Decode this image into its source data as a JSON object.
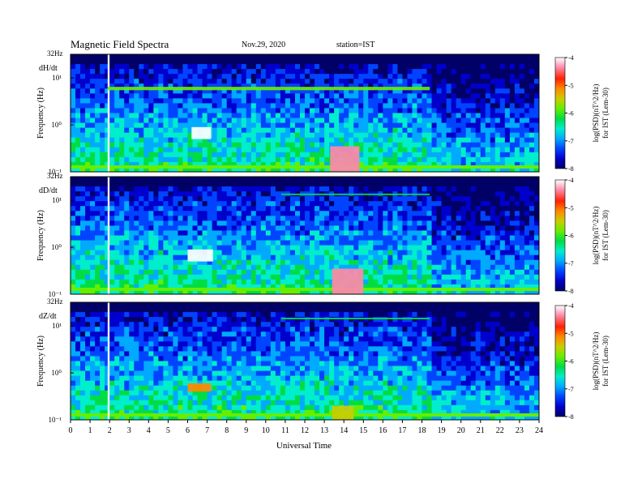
{
  "header": {
    "title": "Magnetic  Field  Spectra",
    "date": "Nov.29, 2020",
    "station": "station=IST"
  },
  "chart_data": {
    "type": "heatmap",
    "xlabel": "Universal Time",
    "x_ticks": [
      "0",
      "1",
      "2",
      "3",
      "4",
      "5",
      "6",
      "7",
      "8",
      "9",
      "10",
      "11",
      "12",
      "13",
      "14",
      "15",
      "16",
      "17",
      "18",
      "19",
      "20",
      "21",
      "22",
      "23",
      "24"
    ],
    "xlim": [
      0,
      24
    ],
    "ylabel": "Frequency (Hz)",
    "y_scale": "log",
    "ylim": [
      0.1,
      32
    ],
    "y_top_label": "32Hz",
    "y_tick_labels": [
      "10¹",
      "10⁰",
      "10⁻¹"
    ],
    "colorbar": {
      "label_line1": "log(PSD)(nT^2/Hz)",
      "label_line2": "for IST (Lem-30)",
      "range": [
        -8,
        -4
      ],
      "ticks": [
        "-4",
        "-5",
        "-6",
        "-7",
        "-8"
      ],
      "colors": [
        "#000066",
        "#0000cc",
        "#0044ff",
        "#00aaff",
        "#00eecc",
        "#00dd44",
        "#66ee00",
        "#cccc00",
        "#ff8800",
        "#ff2200",
        "#ff88aa",
        "#ffffff"
      ]
    },
    "panels": [
      {
        "component": "dH/dt",
        "features": [
          {
            "t_start": 1.9,
            "t_end": 2.0,
            "f_low": 0.1,
            "f_high": 32,
            "log_psd": -4
          },
          {
            "t_start": 6.2,
            "t_end": 7.2,
            "f_low": 0.5,
            "f_high": 0.9,
            "log_psd": -4
          },
          {
            "t_start": 13.3,
            "t_end": 14.8,
            "f_low": 0.1,
            "f_high": 0.35,
            "log_psd": -4.5
          },
          {
            "t_start": 1.9,
            "t_end": 18.4,
            "f_low": 5.5,
            "f_high": 6.5,
            "log_psd": -6
          }
        ]
      },
      {
        "component": "dD/dt",
        "features": [
          {
            "t_start": 1.9,
            "t_end": 2.0,
            "f_low": 0.1,
            "f_high": 32,
            "log_psd": -4
          },
          {
            "t_start": 6.0,
            "t_end": 7.3,
            "f_low": 0.5,
            "f_high": 0.9,
            "log_psd": -4
          },
          {
            "t_start": 13.4,
            "t_end": 15.0,
            "f_low": 0.1,
            "f_high": 0.35,
            "log_psd": -4.3
          },
          {
            "t_start": 10.8,
            "t_end": 18.4,
            "f_low": 13,
            "f_high": 14,
            "log_psd": -6.2
          }
        ]
      },
      {
        "component": "dZ/dt",
        "features": [
          {
            "t_start": 1.9,
            "t_end": 2.0,
            "f_low": 0.1,
            "f_high": 32,
            "log_psd": -4
          },
          {
            "t_start": 6.0,
            "t_end": 7.2,
            "f_low": 0.4,
            "f_high": 0.6,
            "log_psd": -5
          },
          {
            "t_start": 13.4,
            "t_end": 14.5,
            "f_low": 0.1,
            "f_high": 0.2,
            "log_psd": -5.5
          },
          {
            "t_start": 10.8,
            "t_end": 18.4,
            "f_low": 14,
            "f_high": 15,
            "log_psd": -6.2
          }
        ]
      }
    ]
  }
}
